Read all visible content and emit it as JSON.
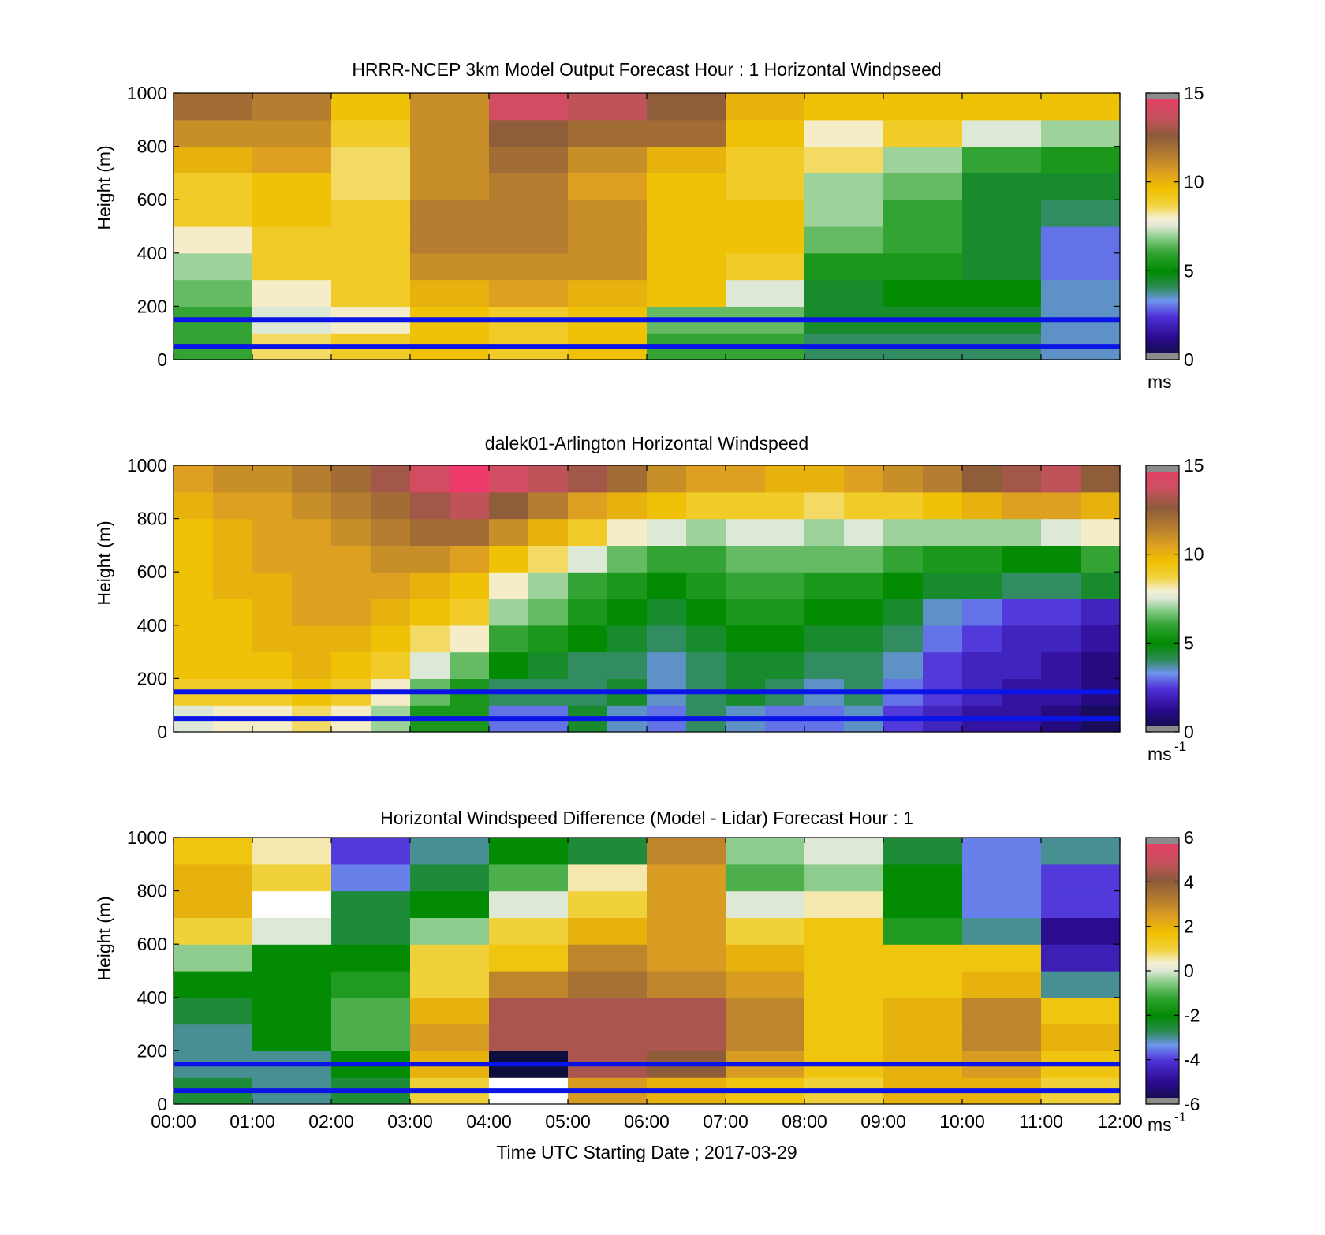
{
  "chart_data": [
    {
      "type": "heatmap",
      "title": "HRRR-NCEP 3km Model Output   Forecast Hour : 1 Horizontal Windpseed",
      "ylabel": "Height (m)",
      "xlabel": "",
      "ylim": [
        0,
        1000
      ],
      "xlim": [
        "00:00",
        "12:00"
      ],
      "y_ticks": [
        0,
        200,
        400,
        600,
        800,
        1000
      ],
      "colorbar": {
        "ticks": [
          0,
          5,
          10,
          15
        ],
        "range": [
          0,
          15
        ],
        "unit": "ms",
        "unit_exp": ""
      },
      "reference_lines_m": [
        150,
        50
      ],
      "reference_line_color": "#0a14e6",
      "columns_hour_start": [
        0,
        1,
        2,
        3,
        4,
        5,
        6,
        7,
        8,
        9,
        10,
        11
      ],
      "heights_m": [
        50,
        150,
        250,
        350,
        450,
        550,
        650,
        750,
        850,
        950
      ],
      "values": [
        [
          6.0,
          8.5,
          9.0,
          9.5,
          9.0,
          9.5,
          6.0,
          6.0,
          4.0,
          4.0,
          4.0,
          3.5
        ],
        [
          6.0,
          7.5,
          8.0,
          9.5,
          9.0,
          9.5,
          6.5,
          6.5,
          4.5,
          4.5,
          4.5,
          3.5
        ],
        [
          6.5,
          8.0,
          9.0,
          10.0,
          10.5,
          10.0,
          9.5,
          7.5,
          4.5,
          5.0,
          5.0,
          3.5
        ],
        [
          7.0,
          9.0,
          9.0,
          11.0,
          11.0,
          11.0,
          9.5,
          9.0,
          5.5,
          5.5,
          4.5,
          3.0
        ],
        [
          8.0,
          9.0,
          9.0,
          11.5,
          11.5,
          11.0,
          9.5,
          9.5,
          6.5,
          6.0,
          4.5,
          3.0
        ],
        [
          9.0,
          9.5,
          9.0,
          11.5,
          11.5,
          11.0,
          9.5,
          9.5,
          7.0,
          6.0,
          4.5,
          4.0
        ],
        [
          9.0,
          9.5,
          8.5,
          11.0,
          11.5,
          10.5,
          9.5,
          9.0,
          7.0,
          6.5,
          4.5,
          4.5
        ],
        [
          10.0,
          10.5,
          8.5,
          11.0,
          12.0,
          11.0,
          10.0,
          9.0,
          8.5,
          7.0,
          6.0,
          5.5
        ],
        [
          11.0,
          11.0,
          9.0,
          11.0,
          12.5,
          12.0,
          12.0,
          9.5,
          8.0,
          9.0,
          7.5,
          7.0
        ],
        [
          12.0,
          11.5,
          9.5,
          11.0,
          14.0,
          13.5,
          12.5,
          10.0,
          9.5,
          9.5,
          9.5,
          9.5
        ]
      ]
    },
    {
      "type": "heatmap",
      "title": "dalek01-Arlington  Horizontal Windspeed",
      "ylabel": "Height (m)",
      "xlabel": "",
      "ylim": [
        0,
        1000
      ],
      "xlim": [
        "00:00",
        "12:00"
      ],
      "y_ticks": [
        0,
        200,
        400,
        600,
        800,
        1000
      ],
      "colorbar": {
        "ticks": [
          0,
          5,
          10,
          15
        ],
        "range": [
          0,
          15
        ],
        "unit": "ms",
        "unit_exp": "-1"
      },
      "reference_lines_m": [
        150,
        50
      ],
      "reference_line_color": "#0a14e6",
      "columns_hour_start": [
        0,
        0.5,
        1,
        1.5,
        2,
        2.5,
        3,
        3.5,
        4,
        4.5,
        5,
        5.5,
        6,
        6.5,
        7,
        7.5,
        8,
        8.5,
        9,
        9.5,
        10,
        10.5,
        11,
        11.5
      ],
      "heights_m": [
        50,
        150,
        250,
        350,
        450,
        550,
        650,
        750,
        850,
        950
      ],
      "values": [
        [
          7.5,
          8.0,
          8.0,
          8.5,
          8.0,
          7.0,
          5.5,
          5.5,
          3.0,
          3.0,
          4.5,
          3.5,
          3.0,
          4.0,
          3.5,
          3.0,
          3.0,
          3.5,
          2.5,
          2.0,
          1.5,
          1.5,
          1.0,
          0.5
        ],
        [
          9.0,
          9.0,
          9.0,
          9.5,
          9.0,
          8.0,
          6.5,
          5.5,
          4.0,
          4.0,
          4.0,
          4.5,
          3.5,
          4.0,
          4.5,
          4.0,
          3.5,
          4.0,
          3.0,
          2.5,
          2.0,
          1.5,
          1.5,
          1.0
        ],
        [
          9.5,
          9.5,
          9.5,
          10.0,
          9.5,
          9.0,
          7.5,
          6.5,
          5.0,
          4.5,
          4.0,
          4.0,
          3.5,
          4.0,
          4.5,
          4.5,
          4.0,
          4.0,
          3.5,
          2.5,
          2.0,
          2.0,
          1.5,
          1.0
        ],
        [
          9.5,
          9.5,
          10.0,
          10.0,
          10.0,
          9.5,
          8.5,
          8.0,
          6.0,
          5.5,
          5.0,
          4.5,
          4.0,
          4.5,
          5.0,
          5.0,
          4.5,
          4.5,
          4.0,
          3.0,
          2.5,
          2.0,
          2.0,
          1.5
        ],
        [
          9.5,
          9.5,
          10.0,
          10.5,
          10.5,
          10.0,
          9.5,
          9.0,
          7.0,
          6.5,
          5.5,
          5.0,
          4.5,
          5.0,
          5.5,
          5.5,
          5.0,
          5.0,
          4.5,
          3.5,
          3.0,
          2.5,
          2.5,
          2.0
        ],
        [
          9.5,
          10.0,
          10.0,
          10.5,
          10.5,
          10.5,
          10.0,
          9.5,
          8.0,
          7.0,
          6.0,
          5.5,
          5.0,
          5.5,
          6.0,
          6.0,
          5.5,
          5.5,
          5.0,
          4.5,
          4.5,
          4.0,
          4.0,
          4.5
        ],
        [
          9.5,
          10.0,
          10.5,
          10.5,
          10.5,
          11.0,
          11.0,
          10.5,
          9.5,
          8.5,
          7.5,
          6.5,
          6.0,
          6.0,
          6.5,
          6.5,
          6.5,
          6.5,
          6.0,
          5.5,
          5.5,
          5.0,
          5.0,
          6.0
        ],
        [
          9.5,
          10.0,
          10.5,
          10.5,
          11.0,
          11.5,
          12.0,
          12.0,
          11.0,
          10.0,
          9.0,
          8.0,
          7.5,
          7.0,
          7.5,
          7.5,
          7.0,
          7.5,
          7.0,
          7.0,
          7.0,
          7.0,
          7.5,
          8.0
        ],
        [
          10.0,
          10.5,
          10.5,
          11.0,
          11.5,
          12.0,
          13.0,
          13.5,
          12.5,
          11.5,
          10.5,
          10.0,
          9.5,
          9.0,
          9.0,
          9.0,
          8.5,
          9.0,
          9.0,
          9.5,
          10.0,
          10.5,
          10.5,
          10.0
        ],
        [
          10.5,
          11.0,
          11.0,
          11.5,
          12.0,
          13.0,
          14.0,
          15.0,
          14.0,
          13.5,
          13.0,
          12.0,
          11.0,
          10.5,
          10.5,
          10.0,
          10.0,
          10.5,
          11.0,
          11.5,
          12.5,
          13.0,
          13.5,
          12.5
        ]
      ]
    },
    {
      "type": "heatmap",
      "title": "Horizontal Windspeed Difference (Model - Lidar) Forecast Hour : 1",
      "ylabel": "Height (m)",
      "xlabel": "Time UTC  Starting Date ; 2017-03-29",
      "ylim": [
        0,
        1000
      ],
      "xlim": [
        "00:00",
        "12:00"
      ],
      "x_ticks": [
        "00:00",
        "01:00",
        "02:00",
        "03:00",
        "04:00",
        "05:00",
        "06:00",
        "07:00",
        "08:00",
        "09:00",
        "10:00",
        "11:00",
        "12:00"
      ],
      "y_ticks": [
        0,
        200,
        400,
        600,
        800,
        1000
      ],
      "colorbar": {
        "ticks": [
          -6,
          -4,
          -2,
          0,
          2,
          4,
          6
        ],
        "range": [
          -6,
          6
        ],
        "unit": "ms",
        "unit_exp": "-1"
      },
      "reference_lines_m": [
        150,
        50
      ],
      "reference_line_color": "#0a14e6",
      "columns_hour_start": [
        0,
        1,
        2,
        3,
        4,
        5,
        6,
        7,
        8,
        9,
        10,
        11
      ],
      "heights_m": [
        50,
        150,
        250,
        350,
        450,
        550,
        650,
        750,
        850,
        950
      ],
      "values": [
        [
          -2.5,
          -3.0,
          -2.5,
          1.0,
          null,
          2.5,
          2.0,
          1.5,
          1.0,
          2.0,
          2.0,
          1.0
        ],
        [
          -3.0,
          -3.0,
          -2.0,
          2.0,
          -6.0,
          4.5,
          4.0,
          2.5,
          1.5,
          2.0,
          2.5,
          1.5
        ],
        [
          -3.0,
          -2.0,
          -1.0,
          2.5,
          4.5,
          4.5,
          4.5,
          3.0,
          1.5,
          2.0,
          3.0,
          2.0
        ],
        [
          -2.5,
          -2.0,
          -1.0,
          2.0,
          4.5,
          4.5,
          4.5,
          3.0,
          1.5,
          2.0,
          3.0,
          1.5
        ],
        [
          -2.0,
          -2.0,
          -1.5,
          1.0,
          3.0,
          3.5,
          3.0,
          2.5,
          1.5,
          1.5,
          2.0,
          -3.0
        ],
        [
          -0.5,
          -2.0,
          -2.0,
          1.0,
          1.5,
          3.0,
          2.5,
          2.0,
          1.5,
          1.5,
          1.5,
          -4.5
        ],
        [
          1.0,
          0.0,
          -2.5,
          -0.5,
          1.0,
          2.0,
          2.5,
          1.0,
          1.5,
          -1.5,
          -3.0,
          -5.0
        ],
        [
          2.0,
          null,
          -2.5,
          -2.0,
          0.0,
          1.0,
          2.5,
          0.0,
          0.5,
          -2.0,
          -3.5,
          -4.0
        ],
        [
          2.0,
          1.0,
          -3.5,
          -2.5,
          -1.0,
          0.5,
          2.5,
          -1.0,
          -0.5,
          -2.0,
          -3.5,
          -4.0
        ],
        [
          1.5,
          0.5,
          -4.0,
          -3.0,
          -2.0,
          -2.5,
          3.0,
          -0.5,
          0.0,
          -2.5,
          -3.5,
          -3.0
        ]
      ]
    }
  ]
}
